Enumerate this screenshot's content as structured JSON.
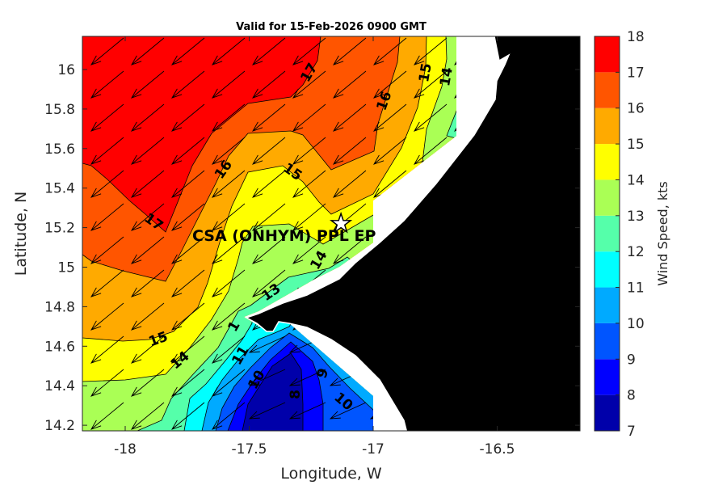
{
  "chart_data": {
    "type": "heatmap",
    "subtype": "filled-contour map with wind vectors",
    "title": "Valid for 15-Feb-2026 0900 GMT",
    "xlabel": "Longitude, W",
    "ylabel": "Latitude, N",
    "xlim": [
      -18.17,
      -16.17
    ],
    "ylim": [
      14.17,
      16.17
    ],
    "xticks": [
      -18,
      -17.5,
      -17,
      -16.5
    ],
    "xtick_labels": [
      "-18",
      "-17.5",
      "-17",
      "-16.5"
    ],
    "yticks": [
      14.2,
      14.4,
      14.6,
      14.8,
      15,
      15.2,
      15.4,
      15.6,
      15.8,
      16
    ],
    "ytick_labels": [
      "14.2",
      "14.4",
      "14.6",
      "14.8",
      "15",
      "15.2",
      "15.4",
      "15.6",
      "15.8",
      "16"
    ],
    "colorbar": {
      "label": "Wind Speed, kts",
      "levels": [
        7,
        8,
        9,
        10,
        11,
        12,
        13,
        14,
        15,
        16,
        17,
        18
      ],
      "tick_labels": [
        "7",
        "8",
        "9",
        "10",
        "11",
        "12",
        "13",
        "14",
        "15",
        "16",
        "17",
        "18"
      ],
      "colors": [
        "#0000aa",
        "#0000ff",
        "#0055ff",
        "#00aaff",
        "#00ffff",
        "#55ffaa",
        "#aaff55",
        "#ffff00",
        "#ffaa00",
        "#ff5500",
        "#ff0000"
      ]
    },
    "contour_labels": [
      "17",
      "17",
      "16",
      "16",
      "15",
      "15",
      "14",
      "15",
      "14",
      "13",
      "1",
      "11",
      "10",
      "8",
      "9",
      "10",
      "14"
    ],
    "site": {
      "label": "CSA (ONHYM) PPL EP",
      "lon": -17.13,
      "lat": 15.22,
      "marker": "star"
    },
    "land_color": "#000000",
    "no_data_color": "#ffffff"
  }
}
